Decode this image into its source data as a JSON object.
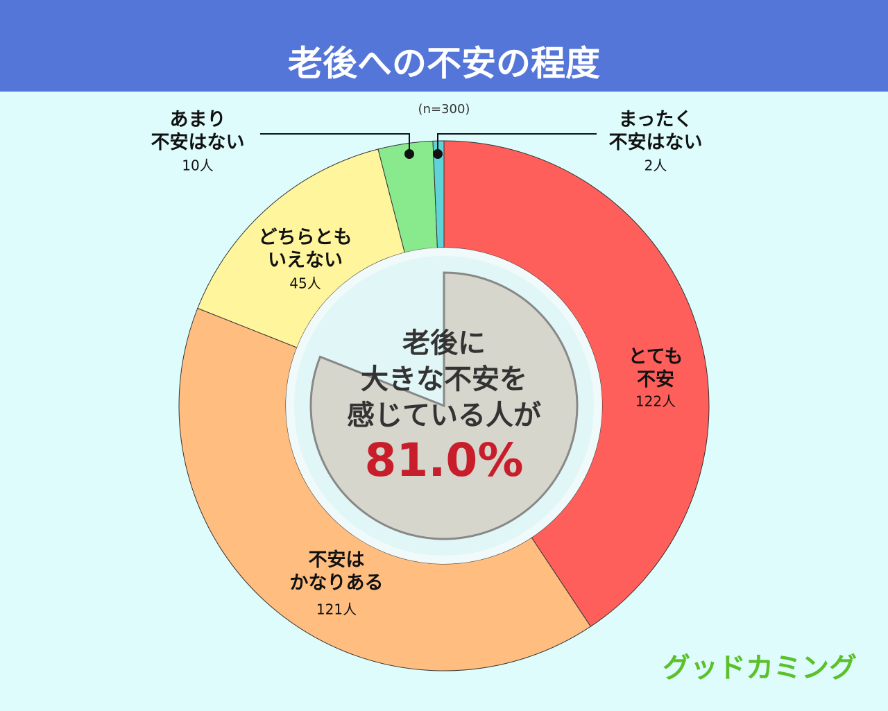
{
  "chart_data": {
    "type": "donut",
    "title": "老後への不安の程度",
    "subtitle": "(n=300)",
    "categories": [
      "とても\n不安",
      "不安は\nかなりある",
      "どちらとも\nいえない",
      "あまり\n不安はない",
      "まったく\n不安はない"
    ],
    "values": [
      122,
      121,
      45,
      10,
      2
    ],
    "value_labels": [
      "122人",
      "121人",
      "45人",
      "10人",
      "2人"
    ],
    "colors": [
      "#ff5f5a",
      "#ffbe80",
      "#fff59c",
      "#88ea8c",
      "#5fd4d8"
    ],
    "center_text": "老後に\n大きな不安を\n感じている人が",
    "center_percent": {
      "value": 81.0,
      "label": "81.0%"
    },
    "logo": "グッドカミング"
  }
}
